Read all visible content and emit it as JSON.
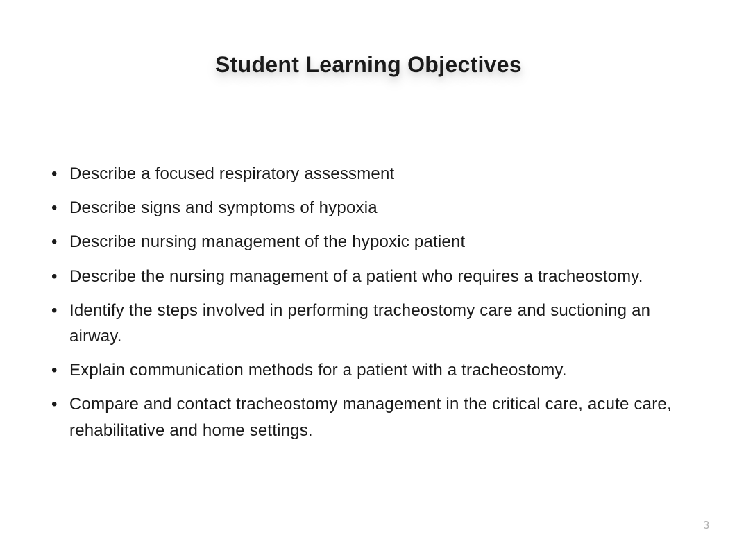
{
  "slide": {
    "title": "Student Learning Objectives",
    "objectives": [
      "Describe a focused respiratory assessment",
      "Describe signs and symptoms of hypoxia",
      "Describe nursing management of the hypoxic patient",
      "Describe the nursing management of a patient who requires a tracheostomy.",
      "Identify the steps involved in performing tracheostomy care and suctioning an airway.",
      "Explain communication methods for a patient with a tracheostomy.",
      "Compare and contact tracheostomy management in the critical care, acute care, rehabilitative and home settings."
    ],
    "pageNumber": "3"
  },
  "styling": {
    "background_color": "#ffffff",
    "title_color": "#1a1a1a",
    "title_fontsize": 32,
    "title_fontweight": 700,
    "body_color": "#1a1a1a",
    "body_fontsize": 24,
    "page_number_color": "#b0b0b0",
    "page_number_fontsize": 16,
    "bullet_style": "disc",
    "title_shadow": "0 8px 16px rgba(0,0,0,0.15)"
  }
}
